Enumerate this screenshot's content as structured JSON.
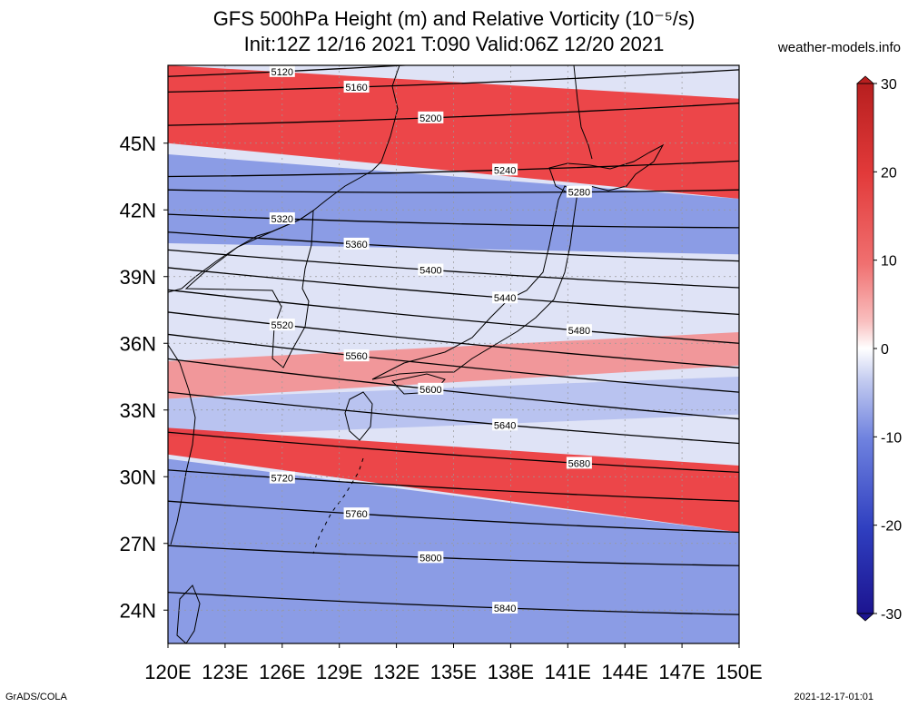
{
  "title_line1": "GFS 500hPa Height (m) and Relative Vorticity (10⁻⁵/s)",
  "title_line2": "Init:12Z 12/16 2021 T:090 Valid:06Z 12/20 2021",
  "site": "weather-models.info",
  "footer_left": "GrADS/COLA",
  "footer_right": "2021-12-17-01:01",
  "lon_labels": [
    "120E",
    "123E",
    "126E",
    "129E",
    "132E",
    "135E",
    "138E",
    "141E",
    "144E",
    "147E",
    "150E"
  ],
  "lat_labels": [
    "45N",
    "42N",
    "39N",
    "36N",
    "33N",
    "30N",
    "27N",
    "24N"
  ],
  "colorbar_ticks": [
    "30",
    "20",
    "10",
    "0",
    "-10",
    "-20",
    "-30"
  ],
  "colorbar_colors": [
    "#b71f1f",
    "#e23a3a",
    "#f07070",
    "#f9b5b5",
    "#ffffff",
    "#b9c3ee",
    "#6f82df",
    "#2f3fc0",
    "#1c1490"
  ],
  "contours": [
    {
      "label": "5120",
      "y_left": 48.0,
      "y_right": 49.5
    },
    {
      "label": "5160",
      "y_left": 47.3,
      "y_right": 48.3
    },
    {
      "label": "5200",
      "y_left": 45.8,
      "y_right": 46.8
    },
    {
      "label": "5240",
      "y_left": 43.5,
      "y_right": 44.2
    },
    {
      "label": "5280",
      "y_left": 42.9,
      "y_right": 42.9
    },
    {
      "label": "5320",
      "y_left": 41.8,
      "y_right": 41.2
    },
    {
      "label": "5360",
      "y_left": 41.0,
      "y_right": 39.7
    },
    {
      "label": "5400",
      "y_left": 40.2,
      "y_right": 38.5
    },
    {
      "label": "5440",
      "y_left": 39.4,
      "y_right": 37.3
    },
    {
      "label": "5480",
      "y_left": 38.4,
      "y_right": 36.0
    },
    {
      "label": "5520",
      "y_left": 37.4,
      "y_right": 34.9
    },
    {
      "label": "5560",
      "y_left": 36.4,
      "y_right": 33.8
    },
    {
      "label": "5600",
      "y_left": 35.3,
      "y_right": 32.6
    },
    {
      "label": "5640",
      "y_left": 33.8,
      "y_right": 31.5
    },
    {
      "label": "5680",
      "y_left": 32.0,
      "y_right": 30.2
    },
    {
      "label": "5720",
      "y_left": 30.3,
      "y_right": 28.9
    },
    {
      "label": "5760",
      "y_left": 28.9,
      "y_right": 27.5
    },
    {
      "label": "5800",
      "y_left": 26.9,
      "y_right": 26.0
    },
    {
      "label": "5840",
      "y_left": 24.8,
      "y_right": 23.8
    }
  ],
  "vorticity_bands": [
    {
      "sign": "positive",
      "lat_top_left": 48.5,
      "lat_bot_left": 45.0,
      "lat_top_right": 47.0,
      "lat_bot_right": 42.5,
      "level": "strong"
    },
    {
      "sign": "negative",
      "lat_top_left": 44.5,
      "lat_bot_left": 40.5,
      "lat_top_right": 42.5,
      "lat_bot_right": 40.0,
      "level": "medium"
    },
    {
      "sign": "positive",
      "lat_top_left": 35.2,
      "lat_bot_left": 33.5,
      "lat_top_right": 36.5,
      "lat_bot_right": 35.0,
      "level": "medium"
    },
    {
      "sign": "negative",
      "lat_top_left": 33.5,
      "lat_bot_left": 31.8,
      "lat_top_right": 34.5,
      "lat_bot_right": 32.8,
      "level": "weak"
    },
    {
      "sign": "positive",
      "lat_top_left": 32.2,
      "lat_bot_left": 31.0,
      "lat_top_right": 30.5,
      "lat_bot_right": 27.5,
      "level": "strong"
    },
    {
      "sign": "negative",
      "lat_top_left": 30.8,
      "lat_bot_left": 22.5,
      "lat_top_right": 27.5,
      "lat_bot_right": 22.5,
      "level": "medium"
    }
  ]
}
